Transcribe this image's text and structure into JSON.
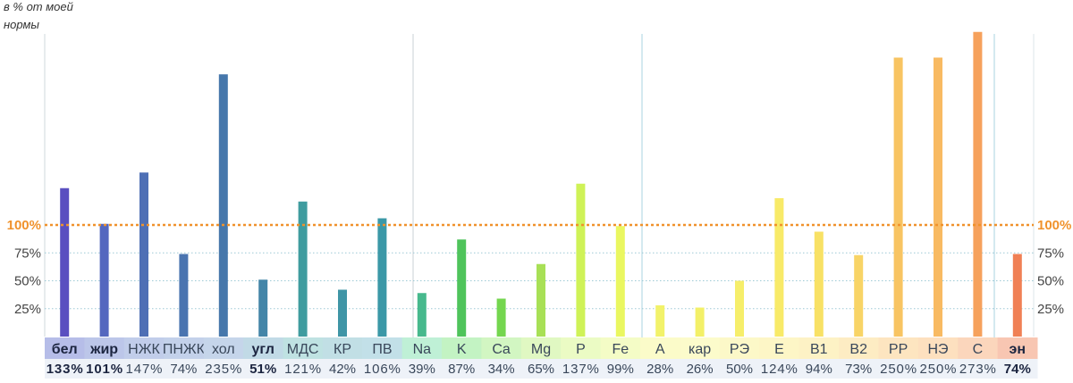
{
  "chart_data": {
    "type": "bar",
    "title": "",
    "ylabel": [
      "в % от моей",
      "нормы"
    ],
    "xlabel": "",
    "ylim": [
      0,
      275
    ],
    "y_ticks": [
      {
        "value": 25,
        "label": "25%"
      },
      {
        "value": 50,
        "label": "50%"
      },
      {
        "value": 75,
        "label": "75%"
      },
      {
        "value": 100,
        "label": "100%"
      }
    ],
    "reference_line": {
      "value": 100,
      "label": "100%",
      "color": "#f0922c"
    },
    "grid": true,
    "categories": [
      {
        "label": "бел",
        "value": 133,
        "value_label": "133%",
        "bold": true,
        "bar_color": "#5a4fc0",
        "cell_color": "#b6bde8"
      },
      {
        "label": "жир",
        "value": 101,
        "value_label": "101%",
        "bold": true,
        "bar_color": "#5467bf",
        "cell_color": "#bcc6e9"
      },
      {
        "label": "НЖК",
        "value": 147,
        "value_label": "147%",
        "bold": false,
        "bar_color": "#4e6fb5",
        "cell_color": "#c1cdea"
      },
      {
        "label": "ПНЖК",
        "value": 74,
        "value_label": "74%",
        "bold": false,
        "bar_color": "#4a74b0",
        "cell_color": "#c3d1ea"
      },
      {
        "label": "хол",
        "value": 235,
        "value_label": "235%",
        "bold": false,
        "bar_color": "#4677ab",
        "cell_color": "#c5d5ea"
      },
      {
        "label": "угл",
        "value": 51,
        "value_label": "51%",
        "bold": true,
        "bar_color": "#4485a8",
        "cell_color": "#c1dae6"
      },
      {
        "label": "МДС",
        "value": 121,
        "value_label": "121%",
        "bold": false,
        "bar_color": "#3f9c9f",
        "cell_color": "#bfe2e2"
      },
      {
        "label": "КР",
        "value": 42,
        "value_label": "42%",
        "bold": false,
        "bar_color": "#3f95a6",
        "cell_color": "#c1dfe5"
      },
      {
        "label": "ПВ",
        "value": 106,
        "value_label": "106%",
        "bold": false,
        "bar_color": "#3b98a7",
        "cell_color": "#c2e0e8"
      },
      {
        "label": "Na",
        "value": 39,
        "value_label": "39%",
        "bold": false,
        "bar_color": "#47b98d",
        "cell_color": "#bff0d6"
      },
      {
        "label": "K",
        "value": 87,
        "value_label": "87%",
        "bold": false,
        "bar_color": "#4fc45b",
        "cell_color": "#c3f3c3"
      },
      {
        "label": "Ca",
        "value": 34,
        "value_label": "34%",
        "bold": false,
        "bar_color": "#74d64f",
        "cell_color": "#d2f6c2"
      },
      {
        "label": "Mg",
        "value": 65,
        "value_label": "65%",
        "bold": false,
        "bar_color": "#a8e056",
        "cell_color": "#e0f8c2"
      },
      {
        "label": "P",
        "value": 137,
        "value_label": "137%",
        "bold": false,
        "bar_color": "#cff257",
        "cell_color": "#ebfbc4"
      },
      {
        "label": "Fe",
        "value": 99,
        "value_label": "99%",
        "bold": false,
        "bar_color": "#eaf760",
        "cell_color": "#f4fcc6"
      },
      {
        "label": "A",
        "value": 28,
        "value_label": "28%",
        "bold": false,
        "bar_color": "#f2f26a",
        "cell_color": "#fbfbc9"
      },
      {
        "label": "кар",
        "value": 26,
        "value_label": "26%",
        "bold": false,
        "bar_color": "#f3f068",
        "cell_color": "#fcfbcb"
      },
      {
        "label": "РЭ",
        "value": 50,
        "value_label": "50%",
        "bold": false,
        "bar_color": "#f6ee6a",
        "cell_color": "#fcf8c8"
      },
      {
        "label": "E",
        "value": 124,
        "value_label": "124%",
        "bold": false,
        "bar_color": "#f8ea68",
        "cell_color": "#fdf6c6"
      },
      {
        "label": "В1",
        "value": 94,
        "value_label": "94%",
        "bold": false,
        "bar_color": "#f8e165",
        "cell_color": "#fdf2c5"
      },
      {
        "label": "В2",
        "value": 73,
        "value_label": "73%",
        "bold": false,
        "bar_color": "#f8d466",
        "cell_color": "#fdecc3"
      },
      {
        "label": "РР",
        "value": 250,
        "value_label": "250%",
        "bold": false,
        "bar_color": "#f8c462",
        "cell_color": "#fde5c0"
      },
      {
        "label": "НЭ",
        "value": 250,
        "value_label": "250%",
        "bold": false,
        "bar_color": "#f8ba62",
        "cell_color": "#fde0bf"
      },
      {
        "label": "С",
        "value": 273,
        "value_label": "273%",
        "bold": false,
        "bar_color": "#f6a15c",
        "cell_color": "#fbd6bc"
      },
      {
        "label": "эн",
        "value": 74,
        "value_label": "74%",
        "bold": true,
        "bar_color": "#f08055",
        "cell_color": "#f8c6b2"
      }
    ]
  }
}
